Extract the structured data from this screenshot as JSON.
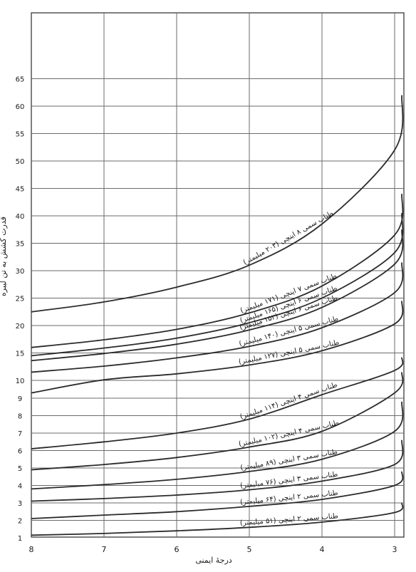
{
  "chart_data": {
    "type": "line",
    "title": "",
    "xlabel": "درجهٔ ایمنی",
    "ylabel": "قدرت کشش به تن لیبره",
    "x_ticks": [
      "8",
      "7",
      "6",
      "5",
      "4",
      "3"
    ],
    "y_ticks": [
      "1",
      "2",
      "3",
      "4",
      "5",
      "6",
      "7",
      "8",
      "9",
      "10",
      "15",
      "20",
      "25",
      "30",
      "35",
      "40",
      "45",
      "50",
      "55",
      "60",
      "65"
    ],
    "xlim": [
      8,
      2.9
    ],
    "ylim": [
      1,
      65
    ],
    "y_scale": "piecewise: 1-10 and 10-65 linear segments",
    "grid": true,
    "legend": "labels on curves",
    "series": [
      {
        "name": "طناب سمی ۸ اینچی (۲۰۳ میلیمتر)",
        "x": [
          8,
          7,
          6,
          5,
          4,
          3,
          2.9
        ],
        "y": [
          22.5,
          24.3,
          27,
          31,
          38.5,
          52,
          62
        ]
      },
      {
        "name": "طناب سمی ۷ اینچی (۱۷۱ میلیمتر)",
        "x": [
          8,
          7,
          6,
          5,
          4,
          3,
          2.9
        ],
        "y": [
          16,
          17.4,
          19.3,
          22.3,
          27.2,
          36.5,
          44
        ]
      },
      {
        "name": "طناب سمی ۶ اینچی (۱۶۵ میلیمتر)",
        "x": [
          8,
          7,
          6,
          5,
          4,
          3,
          2.9
        ],
        "y": [
          14.5,
          15.9,
          17.7,
          20.5,
          25,
          33.3,
          40.5
        ]
      },
      {
        "name": "طناب سمی ۶ اینچی (۱۵۲ میلیمتر)",
        "x": [
          8,
          7,
          6,
          5,
          4,
          3,
          2.9
        ],
        "y": [
          13.6,
          14.9,
          16.6,
          19.2,
          23.3,
          31.2,
          37.5
        ]
      },
      {
        "name": "طناب سمی ۵ اینچی (۱۴۰ میلیمتر)",
        "x": [
          8,
          7,
          6,
          5,
          4,
          3,
          2.9
        ],
        "y": [
          11.5,
          12.6,
          14.1,
          16.2,
          19.6,
          26,
          31.5
        ]
      },
      {
        "name": "طناب سمی ۵ اینچی (۱۲۷ میلیمتر)",
        "x": [
          8,
          7,
          6,
          5,
          4,
          3,
          2.9
        ],
        "y": [
          9.3,
          10.1,
          11.2,
          12.8,
          15.4,
          20.3,
          24.5
        ]
      },
      {
        "name": "طناب سمی ۴ اینچی (۱۱۴ میلیمتر)",
        "x": [
          8,
          7,
          6,
          5,
          4,
          3,
          2.9
        ],
        "y": [
          6.1,
          6.5,
          7,
          7.8,
          9.2,
          11.8,
          14.2
        ]
      },
      {
        "name": "طناب سمی ۴ اینچی (۱۰۲ میلیمتر)",
        "x": [
          8,
          7,
          6,
          5,
          4,
          3,
          2.9
        ],
        "y": [
          4.9,
          5.2,
          5.6,
          6.2,
          7.1,
          9.3,
          11.5
        ]
      },
      {
        "name": "طناب سمی ۳ اینچی (۸۹ میلیمتر)",
        "x": [
          8,
          7,
          6,
          5,
          4,
          3,
          2.9
        ],
        "y": [
          3.8,
          4.05,
          4.35,
          4.8,
          5.5,
          7.1,
          8.8
        ]
      },
      {
        "name": "طناب سمی ۳ اینچی (۷۶ میلیمتر)",
        "x": [
          8,
          7,
          6,
          5,
          4,
          3,
          2.9
        ],
        "y": [
          3.1,
          3.25,
          3.45,
          3.75,
          4.25,
          5.2,
          6.6
        ]
      },
      {
        "name": "طناب سمی ۲ اینچی (۶۴ میلیمتر)",
        "x": [
          8,
          7,
          6,
          5,
          4,
          3,
          2.9
        ],
        "y": [
          2.1,
          2.3,
          2.5,
          2.8,
          3.2,
          4,
          4.8
        ]
      },
      {
        "name": "طناب سمی ۲ اینچی (۵۱ میلیمتر)",
        "x": [
          8,
          7,
          6,
          5,
          4,
          3,
          2.9
        ],
        "y": [
          1.15,
          1.25,
          1.4,
          1.6,
          1.9,
          2.45,
          3
        ]
      }
    ]
  },
  "colors": {
    "curve": "#2b2b2b",
    "grid": "#6b6b6b",
    "background": "#ffffff"
  }
}
